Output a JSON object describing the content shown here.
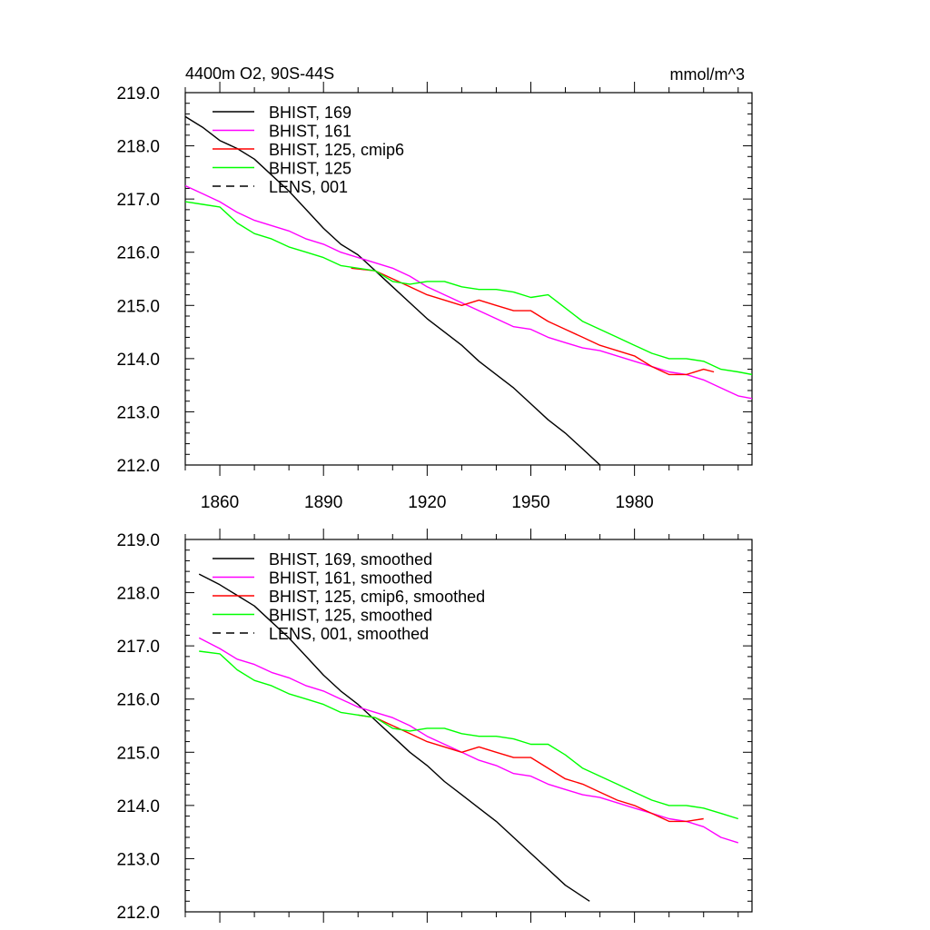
{
  "chart_data": [
    {
      "type": "line",
      "title_left": "4400m O2, 90S-44S",
      "title_right": "mmol/m^3",
      "xlim": [
        1850,
        2014
      ],
      "ylim": [
        212.0,
        219.0
      ],
      "xticks": [
        1860,
        1890,
        1920,
        1950,
        1980
      ],
      "xtick_labels": [
        "1860",
        "1890",
        "1920",
        "1950",
        "1980"
      ],
      "yticks": [
        212.0,
        213.0,
        214.0,
        215.0,
        216.0,
        217.0,
        218.0,
        219.0
      ],
      "ytick_labels": [
        "212.0",
        "213.0",
        "214.0",
        "215.0",
        "216.0",
        "217.0",
        "218.0",
        "219.0"
      ],
      "show_xtick_labels": true,
      "grid": false,
      "legend_position": "top-left",
      "series": [
        {
          "name": "BHIST, 169",
          "color": "#000000",
          "dash": "solid",
          "x": [
            1850,
            1855,
            1860,
            1865,
            1870,
            1875,
            1880,
            1885,
            1890,
            1895,
            1900,
            1905,
            1910,
            1915,
            1920,
            1925,
            1930,
            1935,
            1940,
            1945,
            1950,
            1955,
            1960,
            1965,
            1970
          ],
          "y": [
            218.55,
            218.35,
            218.1,
            217.95,
            217.75,
            217.45,
            217.15,
            216.8,
            216.45,
            216.15,
            215.95,
            215.65,
            215.35,
            215.05,
            214.75,
            214.5,
            214.25,
            213.95,
            213.7,
            213.45,
            213.15,
            212.85,
            212.6,
            212.3,
            212.0
          ]
        },
        {
          "name": "BHIST, 161",
          "color": "#ff00ff",
          "dash": "solid",
          "x": [
            1850,
            1855,
            1860,
            1865,
            1870,
            1875,
            1880,
            1885,
            1890,
            1895,
            1900,
            1905,
            1910,
            1915,
            1920,
            1925,
            1930,
            1935,
            1940,
            1945,
            1950,
            1955,
            1960,
            1965,
            1970,
            1975,
            1980,
            1985,
            1990,
            1995,
            2000,
            2005,
            2010,
            2014
          ],
          "y": [
            217.25,
            217.1,
            216.95,
            216.75,
            216.6,
            216.5,
            216.4,
            216.25,
            216.15,
            216.0,
            215.9,
            215.8,
            215.7,
            215.55,
            215.35,
            215.2,
            215.05,
            214.9,
            214.75,
            214.6,
            214.55,
            214.4,
            214.3,
            214.2,
            214.15,
            214.05,
            213.95,
            213.85,
            213.75,
            213.7,
            213.6,
            213.45,
            213.3,
            213.25
          ]
        },
        {
          "name": "BHIST, 125, cmip6",
          "color": "#ff0000",
          "dash": "solid",
          "x": [
            1898,
            1905,
            1910,
            1915,
            1920,
            1925,
            1930,
            1935,
            1940,
            1945,
            1950,
            1955,
            1960,
            1965,
            1970,
            1975,
            1980,
            1985,
            1990,
            1995,
            2000,
            2003
          ],
          "y": [
            215.7,
            215.65,
            215.5,
            215.35,
            215.2,
            215.1,
            215.0,
            215.1,
            215.0,
            214.9,
            214.9,
            214.7,
            214.55,
            214.4,
            214.25,
            214.15,
            214.05,
            213.85,
            213.7,
            213.7,
            213.8,
            213.75
          ]
        },
        {
          "name": "BHIST, 125",
          "color": "#00ff00",
          "dash": "solid",
          "x": [
            1850,
            1855,
            1860,
            1865,
            1870,
            1875,
            1880,
            1885,
            1890,
            1895,
            1900,
            1905,
            1910,
            1915,
            1920,
            1925,
            1930,
            1935,
            1940,
            1945,
            1950,
            1955,
            1960,
            1965,
            1970,
            1975,
            1980,
            1985,
            1990,
            1995,
            2000,
            2005,
            2010,
            2014
          ],
          "y": [
            216.95,
            216.9,
            216.85,
            216.55,
            216.35,
            216.25,
            216.1,
            216.0,
            215.9,
            215.75,
            215.7,
            215.65,
            215.45,
            215.4,
            215.45,
            215.45,
            215.35,
            215.3,
            215.3,
            215.25,
            215.15,
            215.2,
            214.95,
            214.7,
            214.55,
            214.4,
            214.25,
            214.1,
            214.0,
            214.0,
            213.95,
            213.8,
            213.75,
            213.7
          ]
        },
        {
          "name": "LENS, 001",
          "color": "#000000",
          "dash": "dashed",
          "x": [],
          "y": []
        }
      ]
    },
    {
      "type": "line",
      "title_left": "",
      "title_right": "",
      "xlim": [
        1850,
        2014
      ],
      "ylim": [
        212.0,
        219.0
      ],
      "xticks": [
        1860,
        1890,
        1920,
        1950,
        1980
      ],
      "xtick_labels": [
        "",
        "",
        "",
        "",
        ""
      ],
      "yticks": [
        212.0,
        213.0,
        214.0,
        215.0,
        216.0,
        217.0,
        218.0,
        219.0
      ],
      "ytick_labels": [
        "212.0",
        "213.0",
        "214.0",
        "215.0",
        "216.0",
        "217.0",
        "218.0",
        "219.0"
      ],
      "show_xtick_labels": false,
      "grid": false,
      "legend_position": "top-left",
      "series": [
        {
          "name": "BHIST, 169, smoothed",
          "color": "#000000",
          "dash": "solid",
          "x": [
            1854,
            1860,
            1865,
            1870,
            1875,
            1880,
            1885,
            1890,
            1895,
            1900,
            1905,
            1910,
            1915,
            1920,
            1925,
            1930,
            1935,
            1940,
            1945,
            1950,
            1955,
            1960,
            1967
          ],
          "y": [
            218.35,
            218.15,
            217.95,
            217.75,
            217.45,
            217.15,
            216.8,
            216.45,
            216.15,
            215.9,
            215.6,
            215.3,
            215.0,
            214.75,
            214.45,
            214.2,
            213.95,
            213.7,
            213.4,
            213.1,
            212.8,
            212.5,
            212.2
          ]
        },
        {
          "name": "BHIST, 161, smoothed",
          "color": "#ff00ff",
          "dash": "solid",
          "x": [
            1854,
            1860,
            1865,
            1870,
            1875,
            1880,
            1885,
            1890,
            1895,
            1900,
            1905,
            1910,
            1915,
            1920,
            1925,
            1930,
            1935,
            1940,
            1945,
            1950,
            1955,
            1960,
            1965,
            1970,
            1975,
            1980,
            1985,
            1990,
            1995,
            2000,
            2005,
            2010
          ],
          "y": [
            217.15,
            216.95,
            216.75,
            216.65,
            216.5,
            216.4,
            216.25,
            216.15,
            216.0,
            215.85,
            215.75,
            215.65,
            215.5,
            215.3,
            215.15,
            215.0,
            214.85,
            214.75,
            214.6,
            214.55,
            214.4,
            214.3,
            214.2,
            214.15,
            214.05,
            213.95,
            213.85,
            213.75,
            213.7,
            213.6,
            213.4,
            213.3
          ]
        },
        {
          "name": "BHIST, 125, cmip6, smoothed",
          "color": "#ff0000",
          "dash": "solid",
          "x": [
            1900,
            1905,
            1910,
            1915,
            1920,
            1925,
            1930,
            1935,
            1940,
            1945,
            1950,
            1955,
            1960,
            1965,
            1970,
            1975,
            1980,
            1985,
            1990,
            1995,
            2000
          ],
          "y": [
            215.7,
            215.65,
            215.5,
            215.35,
            215.2,
            215.1,
            215.0,
            215.1,
            215.0,
            214.9,
            214.9,
            214.7,
            214.5,
            214.4,
            214.25,
            214.1,
            214.0,
            213.85,
            213.7,
            213.7,
            213.75
          ]
        },
        {
          "name": "BHIST, 125, smoothed",
          "color": "#00ff00",
          "dash": "solid",
          "x": [
            1854,
            1860,
            1865,
            1870,
            1875,
            1880,
            1885,
            1890,
            1895,
            1900,
            1905,
            1910,
            1915,
            1920,
            1925,
            1930,
            1935,
            1940,
            1945,
            1950,
            1955,
            1960,
            1965,
            1970,
            1975,
            1980,
            1985,
            1990,
            1995,
            2000,
            2005,
            2010
          ],
          "y": [
            216.9,
            216.85,
            216.55,
            216.35,
            216.25,
            216.1,
            216.0,
            215.9,
            215.75,
            215.7,
            215.65,
            215.45,
            215.4,
            215.45,
            215.45,
            215.35,
            215.3,
            215.3,
            215.25,
            215.15,
            215.15,
            214.95,
            214.7,
            214.55,
            214.4,
            214.25,
            214.1,
            214.0,
            214.0,
            213.95,
            213.85,
            213.75
          ]
        },
        {
          "name": "LENS, 001, smoothed",
          "color": "#000000",
          "dash": "dashed",
          "x": [],
          "y": []
        }
      ]
    }
  ]
}
